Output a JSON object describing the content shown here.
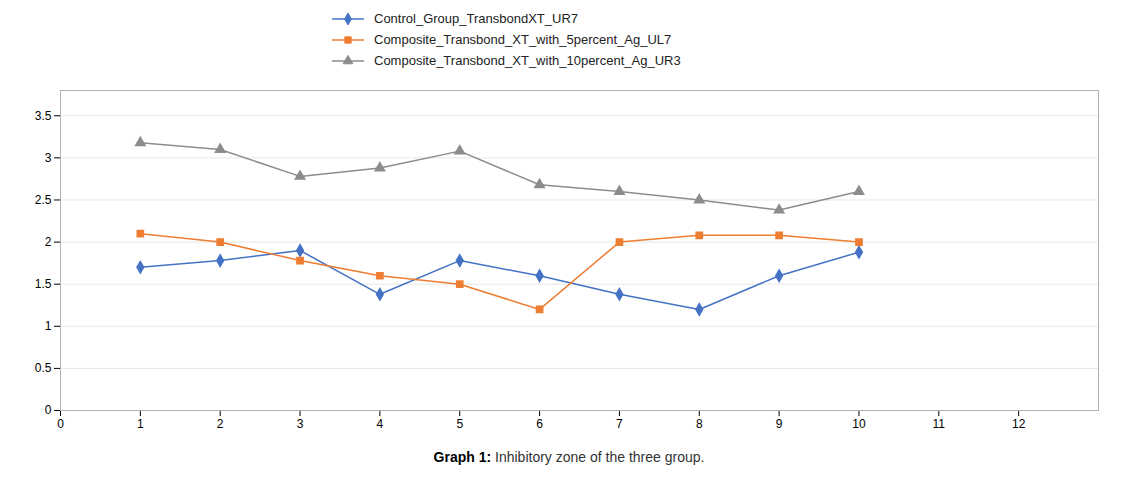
{
  "chart_data": {
    "type": "line",
    "caption": "Graph 1: Inhibitory zone of the three group.",
    "x": [
      1,
      2,
      3,
      4,
      5,
      6,
      7,
      8,
      9,
      10
    ],
    "series": [
      {
        "name": "Control_Group_TransbondXT_UR7",
        "color": "#4472C4",
        "marker": "diamond",
        "values": [
          1.7,
          1.78,
          1.9,
          1.38,
          1.78,
          1.6,
          1.38,
          1.2,
          1.6,
          1.88
        ]
      },
      {
        "name": "Composite_Transbond_XT_with_5percent_Ag_UL7",
        "color": "#ED7D31",
        "marker": "square",
        "values": [
          2.1,
          2.0,
          1.78,
          1.6,
          1.5,
          1.2,
          2.0,
          2.08,
          2.08,
          2.0
        ]
      },
      {
        "name": "Composite_Transbond_XT_with_10percent_Ag_UR3",
        "color": "#8c8c8c",
        "marker": "triangle",
        "values": [
          3.18,
          3.1,
          2.78,
          2.88,
          3.08,
          2.68,
          2.6,
          2.5,
          2.38,
          2.6
        ]
      }
    ],
    "xlim": [
      0,
      13
    ],
    "ylim": [
      0,
      3.8
    ],
    "xticks": [
      0,
      1,
      2,
      3,
      4,
      5,
      6,
      7,
      8,
      9,
      10,
      11,
      12
    ],
    "yticks": [
      0,
      0.5,
      1,
      1.5,
      2,
      2.5,
      3,
      3.5
    ],
    "grid": true,
    "legend": "top"
  }
}
